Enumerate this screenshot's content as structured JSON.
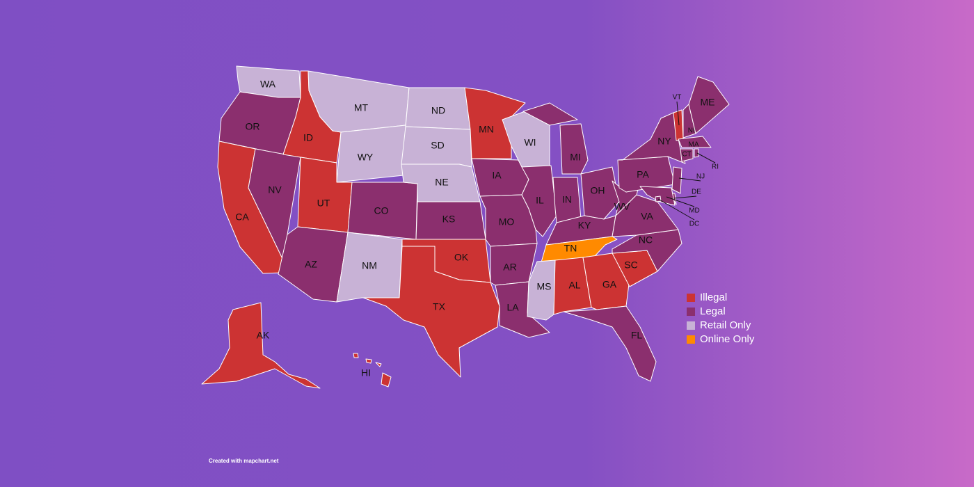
{
  "map": {
    "legend": [
      {
        "label": "Illegal",
        "color": "#cc3333"
      },
      {
        "label": "Legal",
        "color": "#8b2f6e"
      },
      {
        "label": "Retail Only",
        "color": "#c8b2d6"
      },
      {
        "label": "Online Only",
        "color": "#ff8a00"
      }
    ],
    "states": [
      {
        "label": "WA",
        "category": "Retail Only"
      },
      {
        "label": "OR",
        "category": "Legal"
      },
      {
        "label": "CA",
        "category": "Illegal"
      },
      {
        "label": "NV",
        "category": "Legal"
      },
      {
        "label": "ID",
        "category": "Illegal"
      },
      {
        "label": "MT",
        "category": "Retail Only"
      },
      {
        "label": "WY",
        "category": "Retail Only"
      },
      {
        "label": "UT",
        "category": "Illegal"
      },
      {
        "label": "CO",
        "category": "Legal"
      },
      {
        "label": "AZ",
        "category": "Legal"
      },
      {
        "label": "NM",
        "category": "Retail Only"
      },
      {
        "label": "ND",
        "category": "Retail Only"
      },
      {
        "label": "SD",
        "category": "Retail Only"
      },
      {
        "label": "NE",
        "category": "Retail Only"
      },
      {
        "label": "KS",
        "category": "Legal"
      },
      {
        "label": "OK",
        "category": "Illegal"
      },
      {
        "label": "TX",
        "category": "Illegal"
      },
      {
        "label": "MN",
        "category": "Illegal"
      },
      {
        "label": "IA",
        "category": "Legal"
      },
      {
        "label": "MO",
        "category": "Legal"
      },
      {
        "label": "AR",
        "category": "Legal"
      },
      {
        "label": "LA",
        "category": "Legal"
      },
      {
        "label": "WI",
        "category": "Retail Only"
      },
      {
        "label": "IL",
        "category": "Legal"
      },
      {
        "label": "MI",
        "category": "Legal"
      },
      {
        "label": "IN",
        "category": "Legal"
      },
      {
        "label": "OH",
        "category": "Legal"
      },
      {
        "label": "KY",
        "category": "Legal"
      },
      {
        "label": "TN",
        "category": "Online Only"
      },
      {
        "label": "MS",
        "category": "Retail Only"
      },
      {
        "label": "AL",
        "category": "Illegal"
      },
      {
        "label": "GA",
        "category": "Illegal"
      },
      {
        "label": "FL",
        "category": "Legal"
      },
      {
        "label": "SC",
        "category": "Illegal"
      },
      {
        "label": "NC",
        "category": "Legal"
      },
      {
        "label": "VA",
        "category": "Legal"
      },
      {
        "label": "WV",
        "category": "Legal"
      },
      {
        "label": "PA",
        "category": "Legal"
      },
      {
        "label": "NY",
        "category": "Legal"
      },
      {
        "label": "VT",
        "category": "Illegal"
      },
      {
        "label": "NH",
        "category": "Legal"
      },
      {
        "label": "ME",
        "category": "Legal"
      },
      {
        "label": "MA",
        "category": "Legal"
      },
      {
        "label": "CT",
        "category": "Legal"
      },
      {
        "label": "RI",
        "category": "Legal"
      },
      {
        "label": "NJ",
        "category": "Legal"
      },
      {
        "label": "DE",
        "category": "Legal"
      },
      {
        "label": "MD",
        "category": "Legal"
      },
      {
        "label": "DC",
        "category": "Legal"
      },
      {
        "label": "AK",
        "category": "Illegal"
      },
      {
        "label": "HI",
        "category": "Illegal"
      }
    ]
  },
  "footer": "Created with mapchart.net"
}
